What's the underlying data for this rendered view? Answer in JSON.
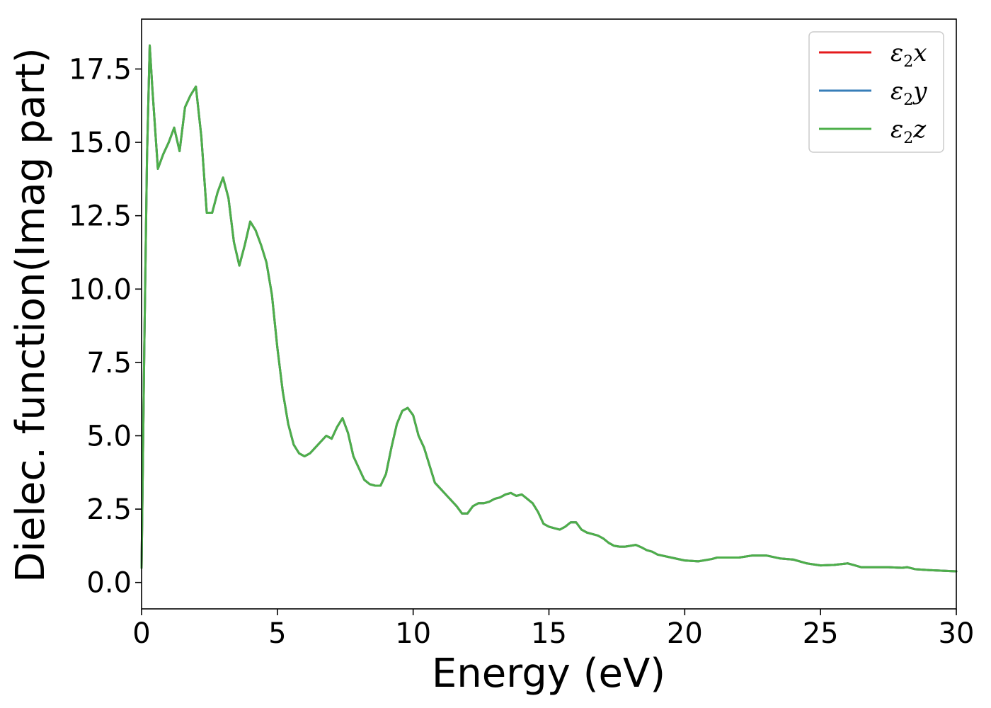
{
  "chart_data": {
    "type": "line",
    "title": "",
    "xlabel": "Energy (eV)",
    "ylabel": "Dielec. function(Imag part)",
    "xlim": [
      0,
      30
    ],
    "ylim": [
      -0.9,
      19.2
    ],
    "xticks": [
      0,
      5,
      10,
      15,
      20,
      25,
      30
    ],
    "xtick_labels": [
      "0",
      "5",
      "10",
      "15",
      "20",
      "25",
      "30"
    ],
    "yticks": [
      0.0,
      2.5,
      5.0,
      7.5,
      10.0,
      12.5,
      15.0,
      17.5
    ],
    "ytick_labels": [
      "0.0",
      "2.5",
      "5.0",
      "7.5",
      "10.0",
      "12.5",
      "15.0",
      "17.5"
    ],
    "grid": false,
    "legend_position": "top-right",
    "colors": {
      "series_x": "#e41a1c",
      "series_y": "#377eb8",
      "series_z": "#4daf4a",
      "axis": "#000000",
      "legend_border": "#cccccc"
    },
    "x": [
      0.0,
      0.1,
      0.2,
      0.3,
      0.4,
      0.6,
      0.8,
      1.0,
      1.2,
      1.4,
      1.6,
      1.8,
      2.0,
      2.2,
      2.4,
      2.6,
      2.8,
      3.0,
      3.2,
      3.4,
      3.6,
      3.8,
      4.0,
      4.2,
      4.4,
      4.6,
      4.8,
      5.0,
      5.2,
      5.4,
      5.6,
      5.8,
      6.0,
      6.2,
      6.4,
      6.6,
      6.8,
      7.0,
      7.2,
      7.4,
      7.6,
      7.8,
      8.0,
      8.2,
      8.4,
      8.6,
      8.8,
      9.0,
      9.2,
      9.4,
      9.6,
      9.8,
      10.0,
      10.2,
      10.4,
      10.6,
      10.8,
      11.0,
      11.2,
      11.4,
      11.6,
      11.8,
      12.0,
      12.2,
      12.4,
      12.6,
      12.8,
      13.0,
      13.2,
      13.4,
      13.6,
      13.8,
      14.0,
      14.2,
      14.4,
      14.6,
      14.8,
      15.0,
      15.2,
      15.4,
      15.6,
      15.8,
      16.0,
      16.2,
      16.4,
      16.6,
      16.8,
      17.0,
      17.2,
      17.4,
      17.6,
      17.8,
      18.0,
      18.2,
      18.4,
      18.6,
      18.8,
      19.0,
      19.5,
      20.0,
      20.5,
      21.0,
      21.2,
      21.5,
      22.0,
      22.5,
      23.0,
      23.5,
      24.0,
      24.5,
      25.0,
      25.5,
      26.0,
      26.2,
      26.5,
      27.0,
      27.5,
      28.0,
      28.2,
      28.5,
      29.0,
      29.5,
      30.0
    ],
    "series": [
      {
        "name": "ε2x",
        "color": "#e41a1c",
        "values": [
          0.5,
          8.0,
          14.5,
          18.3,
          16.8,
          14.1,
          14.6,
          15.0,
          15.5,
          14.7,
          16.2,
          16.6,
          16.9,
          15.2,
          12.6,
          12.6,
          13.3,
          13.8,
          13.1,
          11.6,
          10.8,
          11.5,
          12.3,
          12.0,
          11.5,
          10.9,
          9.8,
          8.0,
          6.5,
          5.4,
          4.7,
          4.4,
          4.3,
          4.4,
          4.6,
          4.8,
          5.0,
          4.9,
          5.3,
          5.6,
          5.1,
          4.3,
          3.9,
          3.5,
          3.35,
          3.3,
          3.3,
          3.7,
          4.6,
          5.4,
          5.85,
          5.95,
          5.7,
          5.0,
          4.6,
          4.0,
          3.4,
          3.2,
          3.0,
          2.8,
          2.6,
          2.35,
          2.35,
          2.6,
          2.7,
          2.7,
          2.75,
          2.85,
          2.9,
          3.0,
          3.05,
          2.95,
          3.0,
          2.85,
          2.7,
          2.4,
          2.0,
          1.9,
          1.85,
          1.8,
          1.9,
          2.05,
          2.05,
          1.8,
          1.7,
          1.65,
          1.6,
          1.5,
          1.35,
          1.25,
          1.22,
          1.22,
          1.25,
          1.28,
          1.2,
          1.1,
          1.05,
          0.95,
          0.85,
          0.75,
          0.72,
          0.8,
          0.85,
          0.85,
          0.85,
          0.92,
          0.92,
          0.82,
          0.78,
          0.65,
          0.58,
          0.6,
          0.65,
          0.6,
          0.52,
          0.52,
          0.52,
          0.5,
          0.52,
          0.45,
          0.42,
          0.4,
          0.38
        ]
      },
      {
        "name": "ε2y",
        "color": "#377eb8",
        "values": [
          0.5,
          8.0,
          14.5,
          18.3,
          16.8,
          14.1,
          14.6,
          15.0,
          15.5,
          14.7,
          16.2,
          16.6,
          16.9,
          15.2,
          12.6,
          12.6,
          13.3,
          13.8,
          13.1,
          11.6,
          10.8,
          11.5,
          12.3,
          12.0,
          11.5,
          10.9,
          9.8,
          8.0,
          6.5,
          5.4,
          4.7,
          4.4,
          4.3,
          4.4,
          4.6,
          4.8,
          5.0,
          4.9,
          5.3,
          5.6,
          5.1,
          4.3,
          3.9,
          3.5,
          3.35,
          3.3,
          3.3,
          3.7,
          4.6,
          5.4,
          5.85,
          5.95,
          5.7,
          5.0,
          4.6,
          4.0,
          3.4,
          3.2,
          3.0,
          2.8,
          2.6,
          2.35,
          2.35,
          2.6,
          2.7,
          2.7,
          2.75,
          2.85,
          2.9,
          3.0,
          3.05,
          2.95,
          3.0,
          2.85,
          2.7,
          2.4,
          2.0,
          1.9,
          1.85,
          1.8,
          1.9,
          2.05,
          2.05,
          1.8,
          1.7,
          1.65,
          1.6,
          1.5,
          1.35,
          1.25,
          1.22,
          1.22,
          1.25,
          1.28,
          1.2,
          1.1,
          1.05,
          0.95,
          0.85,
          0.75,
          0.72,
          0.8,
          0.85,
          0.85,
          0.85,
          0.92,
          0.92,
          0.82,
          0.78,
          0.65,
          0.58,
          0.6,
          0.65,
          0.6,
          0.52,
          0.52,
          0.52,
          0.5,
          0.52,
          0.45,
          0.42,
          0.4,
          0.38
        ]
      },
      {
        "name": "ε2z",
        "color": "#4daf4a",
        "values": [
          0.5,
          8.0,
          14.5,
          18.3,
          16.8,
          14.1,
          14.6,
          15.0,
          15.5,
          14.7,
          16.2,
          16.6,
          16.9,
          15.2,
          12.6,
          12.6,
          13.3,
          13.8,
          13.1,
          11.6,
          10.8,
          11.5,
          12.3,
          12.0,
          11.5,
          10.9,
          9.8,
          8.0,
          6.5,
          5.4,
          4.7,
          4.4,
          4.3,
          4.4,
          4.6,
          4.8,
          5.0,
          4.9,
          5.3,
          5.6,
          5.1,
          4.3,
          3.9,
          3.5,
          3.35,
          3.3,
          3.3,
          3.7,
          4.6,
          5.4,
          5.85,
          5.95,
          5.7,
          5.0,
          4.6,
          4.0,
          3.4,
          3.2,
          3.0,
          2.8,
          2.6,
          2.35,
          2.35,
          2.6,
          2.7,
          2.7,
          2.75,
          2.85,
          2.9,
          3.0,
          3.05,
          2.95,
          3.0,
          2.85,
          2.7,
          2.4,
          2.0,
          1.9,
          1.85,
          1.8,
          1.9,
          2.05,
          2.05,
          1.8,
          1.7,
          1.65,
          1.6,
          1.5,
          1.35,
          1.25,
          1.22,
          1.22,
          1.25,
          1.28,
          1.2,
          1.1,
          1.05,
          0.95,
          0.85,
          0.75,
          0.72,
          0.8,
          0.85,
          0.85,
          0.85,
          0.92,
          0.92,
          0.82,
          0.78,
          0.65,
          0.58,
          0.6,
          0.65,
          0.6,
          0.52,
          0.52,
          0.52,
          0.5,
          0.52,
          0.45,
          0.42,
          0.4,
          0.38
        ]
      }
    ],
    "legend": [
      {
        "symbol": "ε",
        "subscript": "2",
        "axis": "x"
      },
      {
        "symbol": "ε",
        "subscript": "2",
        "axis": "y"
      },
      {
        "symbol": "ε",
        "subscript": "2",
        "axis": "z"
      }
    ]
  }
}
